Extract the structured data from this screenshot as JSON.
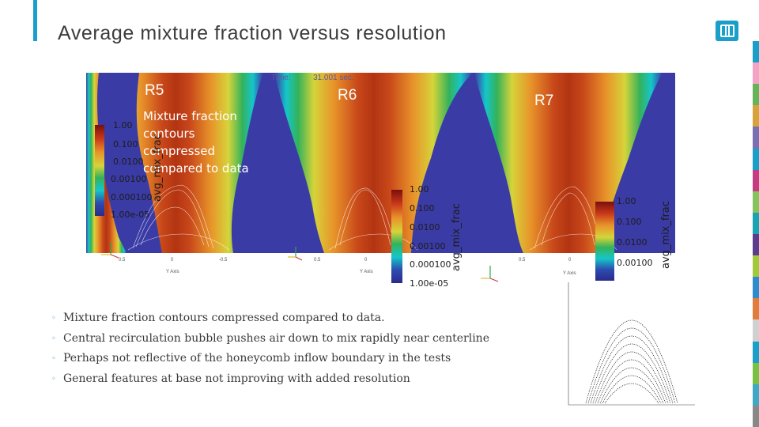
{
  "slide": {
    "title": "Average mixture fraction versus resolution",
    "colors": {
      "accent": "#1a9fc9",
      "title_text": "#3c3c3c",
      "background": "#ffffff",
      "sim_background": "#3b3ba6"
    },
    "logo": {
      "icon": "sandia-logo-icon"
    },
    "side_stripe_colors": [
      "#1a9fc9",
      "#f3a3c4",
      "#66b35a",
      "#d8a23a",
      "#7a6fb0",
      "#1a9fc9",
      "#c43c82",
      "#86c35c",
      "#1aa3b1",
      "#5c3c8c",
      "#a4c83c",
      "#2c8ccc",
      "#e07c3c",
      "#d0d0d0",
      "#1a9fc9",
      "#7ac143",
      "#40a8c4",
      "#888888"
    ]
  },
  "figure": {
    "panels": [
      {
        "label": "R5"
      },
      {
        "label": "R6"
      },
      {
        "label": "R7"
      }
    ],
    "annotation": [
      "Mixture fraction",
      "contours",
      "compressed",
      "compared to data"
    ],
    "time": {
      "label": "Time:",
      "value": "31.001 sec."
    },
    "colorbars": [
      {
        "title": "avg_mix_frac",
        "ticks": [
          "1.00",
          "0.100",
          "0.0100",
          "0.00100",
          "0.000100",
          "1.00e-05"
        ]
      },
      {
        "title": "avg_mix_frac",
        "ticks": [
          "1.00",
          "0.100",
          "0.0100",
          "0.00100",
          "0.000100",
          "1.00e-05"
        ]
      },
      {
        "title": "avg_mix_frac",
        "ticks": [
          "1.00",
          "0.100",
          "0.0100",
          "0.00100"
        ]
      }
    ],
    "x_axis": {
      "title": "Y Axis",
      "ticks": [
        "0.5",
        "0",
        "-0.5"
      ]
    },
    "orientation_axes": [
      "Z",
      "Y",
      "X"
    ],
    "colormap_icon": "rainbow-colormap"
  },
  "bullets": [
    "Mixture fraction contours compressed compared to data.",
    "Central recirculation bubble pushes air down to mix rapidly near centerline",
    "Perhaps not reflective of the honeycomb inflow boundary in the tests",
    "General features at base not improving with added resolution"
  ],
  "inset_plot": {
    "type": "line",
    "contours": 9,
    "description_icon": "experimental-contour-plot"
  }
}
